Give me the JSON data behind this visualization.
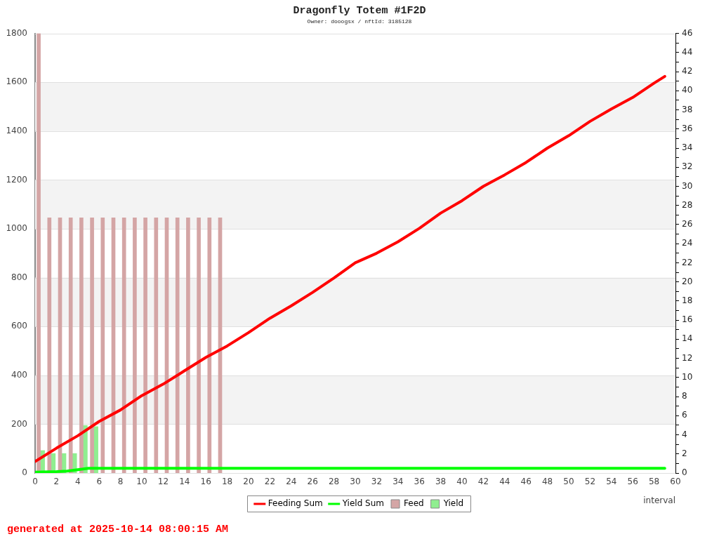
{
  "chart_data": {
    "type": "bar",
    "title": "Dragonfly Totem #1F2D",
    "subtitle": "Owner: dooogsx / nftId: 3185128",
    "xlabel": "interval",
    "annotations": [
      "generated at 2025-10-14 08:00:15 AM"
    ],
    "series": [
      {
        "name": "Feeding Sum",
        "type": "line",
        "axis": "y2",
        "color": "#ff0000",
        "x": [
          0,
          2,
          4,
          6,
          8,
          10,
          12,
          14,
          16,
          18,
          20,
          22,
          24,
          26,
          28,
          30,
          32,
          34,
          36,
          38,
          40,
          42,
          44,
          46,
          48,
          50,
          52,
          54,
          56,
          58,
          59
        ],
        "values": [
          1.2,
          2.6,
          3.9,
          5.4,
          6.6,
          8.1,
          9.3,
          10.7,
          12.1,
          13.3,
          14.7,
          16.2,
          17.5,
          18.9,
          20.4,
          22.0,
          23.0,
          24.2,
          25.6,
          27.2,
          28.5,
          30.0,
          31.2,
          32.5,
          34.0,
          35.3,
          36.8,
          38.1,
          39.3,
          40.8,
          41.5
        ]
      },
      {
        "name": "Yield Sum",
        "type": "line",
        "axis": "y2",
        "color": "#00ff00",
        "x": [
          0,
          2,
          3,
          4,
          5,
          59
        ],
        "values": [
          0.1,
          0.15,
          0.2,
          0.35,
          0.5,
          0.5
        ]
      },
      {
        "name": "Feed",
        "color": "#d4a5a5",
        "x": [
          0.5,
          1.5,
          2.5,
          3.5,
          4.5,
          5.5,
          6.5,
          7.5,
          8.5,
          9.5,
          10.5,
          11.5,
          12.5,
          13.5,
          14.5,
          15.5,
          16.5,
          17.5
        ],
        "values": [
          1800,
          1045,
          1045,
          1045,
          1045,
          1045,
          1045,
          1045,
          1045,
          1045,
          1045,
          1045,
          1045,
          1045,
          1045,
          1045,
          1045,
          1045
        ]
      },
      {
        "name": "Yield",
        "color": "#90ee90",
        "x": [
          0.5,
          1.5,
          2.5,
          3.5,
          4.5,
          5.5
        ],
        "values": [
          92,
          80,
          80,
          80,
          195,
          190
        ]
      }
    ],
    "xlim": [
      0,
      60
    ],
    "xticks": [
      0,
      2,
      4,
      6,
      8,
      10,
      12,
      14,
      16,
      18,
      20,
      22,
      24,
      26,
      28,
      30,
      32,
      34,
      36,
      38,
      40,
      42,
      44,
      46,
      48,
      50,
      52,
      54,
      56,
      58,
      60
    ],
    "ylim": [
      0,
      1800
    ],
    "yticks": [
      0,
      200,
      400,
      600,
      800,
      1000,
      1200,
      1400,
      1600,
      1800
    ],
    "y2lim": [
      0,
      46
    ],
    "y2ticks": [
      0,
      {
        "value": 1,
        "label": null
      },
      2,
      {
        "value": 3,
        "label": null
      },
      4,
      {
        "value": 5,
        "label": null
      },
      6,
      {
        "value": 7,
        "label": null
      },
      8,
      {
        "value": 9,
        "label": null
      },
      10,
      {
        "value": 11,
        "label": null
      },
      12,
      {
        "value": 13,
        "label": null
      },
      14,
      {
        "value": 15,
        "label": null
      },
      16,
      {
        "value": 17,
        "label": null
      },
      18,
      {
        "value": 19,
        "label": null
      },
      20,
      {
        "value": 21,
        "label": null
      },
      22,
      {
        "value": 23,
        "label": null
      },
      24,
      {
        "value": 25,
        "label": null
      },
      26,
      {
        "value": 27,
        "label": null
      },
      28,
      {
        "value": 29,
        "label": null
      },
      30,
      {
        "value": 31,
        "label": null
      },
      32,
      {
        "value": 33,
        "label": null
      },
      34,
      {
        "value": 35,
        "label": null
      },
      36,
      {
        "value": 37,
        "label": null
      },
      38,
      {
        "value": 39,
        "label": null
      },
      40,
      {
        "value": 41,
        "label": null
      },
      42,
      {
        "value": 43,
        "label": null
      },
      44,
      {
        "value": 45,
        "label": null
      },
      46
    ],
    "grid": "y",
    "legend": "bottom",
    "marker": "none",
    "line_style": "solid"
  }
}
